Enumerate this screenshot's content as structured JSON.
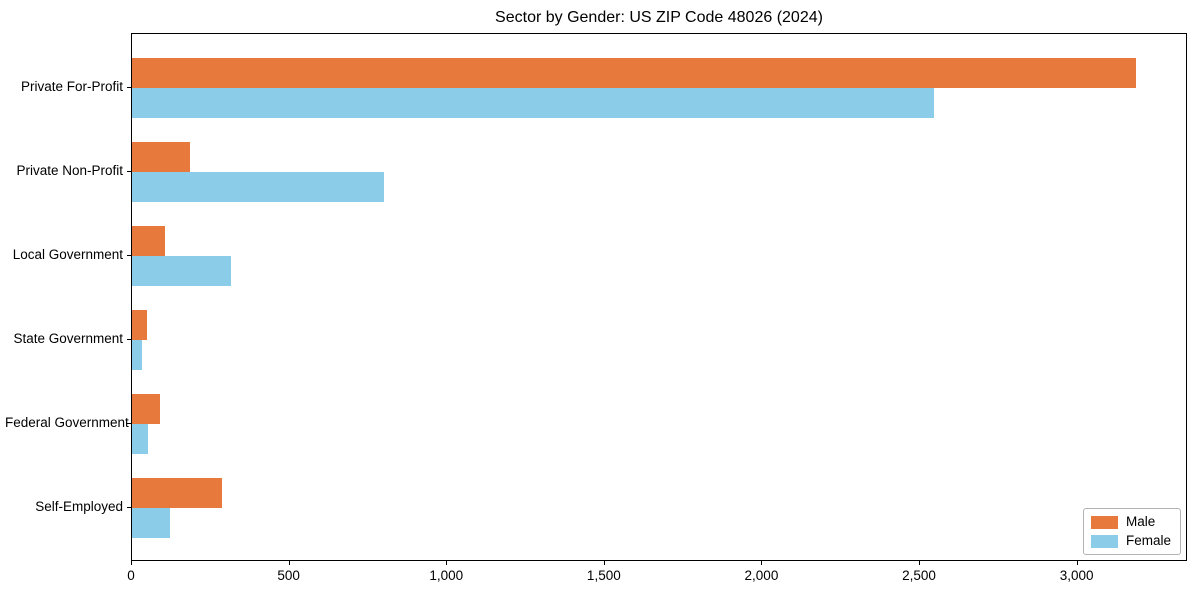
{
  "chart_data": {
    "type": "bar",
    "orientation": "horizontal",
    "title": "Sector by Gender: US ZIP Code 48026 (2024)",
    "categories": [
      "Private For-Profit",
      "Private Non-Profit",
      "Local Government",
      "State Government",
      "Federal Government",
      "Self-Employed"
    ],
    "series": [
      {
        "name": "Male",
        "color": "#e8793c",
        "values": [
          3190,
          185,
          105,
          48,
          88,
          285
        ]
      },
      {
        "name": "Female",
        "color": "#8bcde8",
        "values": [
          2550,
          800,
          315,
          32,
          51,
          120
        ]
      }
    ],
    "xlabel": "",
    "ylabel": "",
    "xlim": [
      0,
      3350
    ],
    "xticks": {
      "values": [
        0,
        500,
        1000,
        1500,
        2000,
        2500,
        3000
      ],
      "labels": [
        "0",
        "500",
        "1,000",
        "1,500",
        "2,000",
        "2,500",
        "3,000"
      ]
    },
    "grid": false,
    "legend": {
      "position": "lower right",
      "entries": [
        "Male",
        "Female"
      ]
    }
  }
}
